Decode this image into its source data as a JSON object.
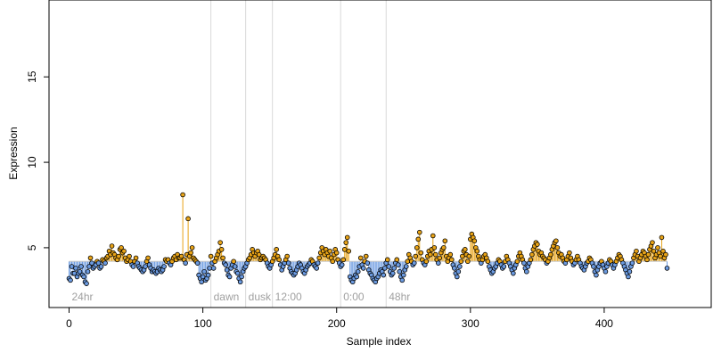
{
  "chart_data": {
    "type": "scatter",
    "title": "",
    "xlabel": "Sample index",
    "ylabel": "Expression",
    "xlim": [
      -15,
      480
    ],
    "ylim": [
      1.5,
      19.5
    ],
    "x_ticks": [
      0,
      100,
      200,
      300,
      400
    ],
    "y_ticks": [
      5,
      10,
      15
    ],
    "baseline": 4.2,
    "colors": {
      "above": "#E8A317",
      "below": "#6B9AE0",
      "point_edge": "#000000",
      "divider": "#D9D9D9",
      "segment_label": "#A0A0A0"
    },
    "segments": [
      {
        "label": "24hr",
        "x_start": 0
      },
      {
        "label": "dawn",
        "x_start": 106
      },
      {
        "label": "dusk",
        "x_start": 132
      },
      {
        "label": "12:00",
        "x_start": 152
      },
      {
        "label": "0:00",
        "x_start": 203
      },
      {
        "label": "48hr",
        "x_start": 237
      }
    ],
    "series": [
      {
        "values": [
          3.2,
          3.1,
          3.9,
          3.5,
          3.5,
          3.8,
          3.3,
          3.5,
          3.6,
          3.9,
          3.4,
          3.3,
          3.0,
          2.9,
          3.6,
          3.9,
          4.4,
          4.1,
          3.8,
          3.9,
          4.0,
          4.2,
          4.1,
          3.8,
          3.9,
          4.3,
          4.2,
          4.1,
          4.4,
          4.5,
          4.8,
          4.6,
          5.1,
          4.7,
          4.6,
          4.4,
          4.3,
          4.5,
          4.9,
          5.0,
          4.7,
          4.8,
          4.4,
          4.2,
          4.3,
          4.5,
          4.2,
          4.0,
          3.9,
          4.2,
          4.4,
          4.1,
          3.9,
          3.8,
          3.7,
          3.6,
          3.7,
          3.9,
          4.2,
          4.4,
          4.0,
          3.8,
          3.6,
          3.7,
          3.6,
          3.5,
          3.6,
          3.8,
          3.7,
          3.6,
          3.7,
          3.9,
          4.3,
          4.2,
          4.3,
          4.1,
          4.0,
          4.2,
          4.4,
          4.5,
          4.3,
          4.6,
          4.4,
          4.4,
          4.5,
          8.1,
          4.3,
          4.1,
          4.6,
          6.7,
          4.5,
          4.7,
          5.0,
          4.4,
          4.3,
          4.2,
          4.1,
          3.4,
          3.2,
          3.0,
          3.3,
          3.6,
          3.1,
          3.2,
          3.4,
          3.8,
          4.5,
          4.1,
          3.8,
          4.2,
          4.4,
          4.6,
          4.8,
          5.3,
          4.9,
          4.4,
          4.1,
          4.0,
          3.7,
          3.4,
          3.3,
          3.8,
          4.0,
          4.2,
          3.9,
          3.6,
          3.5,
          3.2,
          3.0,
          3.3,
          3.6,
          3.8,
          3.9,
          4.1,
          4.3,
          4.4,
          4.6,
          4.9,
          4.7,
          4.5,
          4.7,
          4.8,
          4.6,
          4.3,
          4.4,
          4.5,
          4.4,
          4.3,
          4.1,
          3.9,
          3.8,
          4.0,
          4.2,
          4.4,
          4.6,
          4.9,
          4.5,
          4.3,
          4.0,
          3.7,
          3.9,
          4.1,
          4.3,
          4.5,
          4.1,
          3.8,
          3.6,
          3.5,
          3.4,
          3.5,
          3.7,
          3.9,
          4.1,
          4.0,
          3.8,
          3.6,
          3.5,
          3.7,
          3.9,
          4.0,
          4.1,
          4.3,
          4.2,
          4.0,
          3.9,
          3.8,
          4.1,
          4.4,
          4.7,
          5.0,
          4.8,
          4.6,
          4.9,
          4.7,
          4.5,
          4.8,
          4.4,
          4.2,
          4.6,
          4.9,
          4.7,
          4.3,
          4.1,
          3.9,
          4.0,
          4.3,
          4.9,
          5.3,
          5.6,
          4.8,
          3.3,
          3.1,
          3.0,
          3.2,
          3.4,
          3.3,
          3.6,
          3.9,
          4.4,
          4.0,
          3.8,
          4.2,
          4.5,
          4.1,
          3.7,
          3.5,
          3.4,
          3.2,
          3.1,
          3.0,
          3.2,
          3.3,
          3.5,
          3.7,
          3.6,
          3.4,
          3.8,
          4.1,
          4.3,
          3.9,
          3.6,
          3.4,
          3.5,
          3.8,
          4.1,
          4.3,
          4.0,
          3.6,
          3.3,
          3.1,
          3.4,
          3.7,
          3.9,
          4.2,
          4.6,
          4.4,
          4.2,
          4.0,
          4.1,
          4.5,
          5.0,
          5.5,
          5.9,
          4.7,
          4.3,
          4.1,
          4.0,
          4.2,
          4.5,
          4.8,
          4.6,
          4.9,
          5.7,
          5.0,
          4.6,
          4.3,
          4.1,
          4.4,
          4.7,
          4.9,
          5.0,
          5.4,
          4.5,
          4.2,
          4.4,
          4.6,
          4.3,
          4.0,
          3.8,
          3.5,
          3.3,
          3.6,
          3.9,
          4.2,
          4.5,
          4.8,
          4.9,
          4.6,
          4.2,
          4.5,
          5.5,
          5.8,
          5.6,
          5.4,
          5.0,
          4.8,
          4.5,
          4.3,
          4.1,
          4.3,
          4.5,
          4.6,
          4.4,
          4.2,
          3.9,
          3.7,
          3.5,
          3.6,
          3.8,
          3.9,
          4.1,
          4.3,
          4.2,
          4.0,
          3.8,
          3.9,
          4.2,
          4.5,
          4.3,
          4.1,
          3.9,
          3.7,
          3.5,
          3.8,
          4.0,
          4.2,
          4.5,
          4.7,
          4.5,
          4.3,
          4.1,
          3.8,
          3.6,
          3.9,
          4.1,
          4.3,
          4.6,
          4.9,
          5.1,
          5.3,
          5.2,
          4.8,
          4.6,
          4.7,
          4.5,
          4.4,
          4.3,
          4.1,
          4.2,
          4.4,
          4.6,
          4.9,
          5.1,
          5.3,
          5.4,
          5.0,
          4.7,
          4.5,
          4.6,
          4.4,
          4.2,
          4.1,
          4.3,
          4.5,
          4.7,
          4.4,
          4.2,
          4.0,
          4.1,
          4.3,
          4.5,
          4.3,
          4.1,
          3.9,
          3.8,
          3.7,
          3.9,
          4.1,
          4.2,
          4.4,
          4.3,
          4.1,
          3.9,
          3.6,
          3.4,
          3.7,
          3.9,
          4.1,
          4.2,
          4.0,
          3.8,
          3.6,
          3.9,
          4.1,
          4.3,
          4.2,
          4.0,
          3.8,
          4.0,
          4.2,
          4.4,
          4.6,
          4.5,
          4.3,
          4.1,
          3.9,
          3.7,
          3.5,
          3.3,
          3.6,
          3.9,
          4.1,
          4.4,
          4.6,
          4.8,
          4.5,
          4.2,
          4.4,
          4.6,
          4.8,
          4.7,
          4.5,
          4.3,
          4.6,
          4.9,
          5.1,
          5.3,
          4.8,
          4.4,
          4.6,
          5.0,
          4.7,
          4.5,
          5.6,
          4.8,
          4.4,
          4.6,
          3.8
        ]
      }
    ]
  }
}
